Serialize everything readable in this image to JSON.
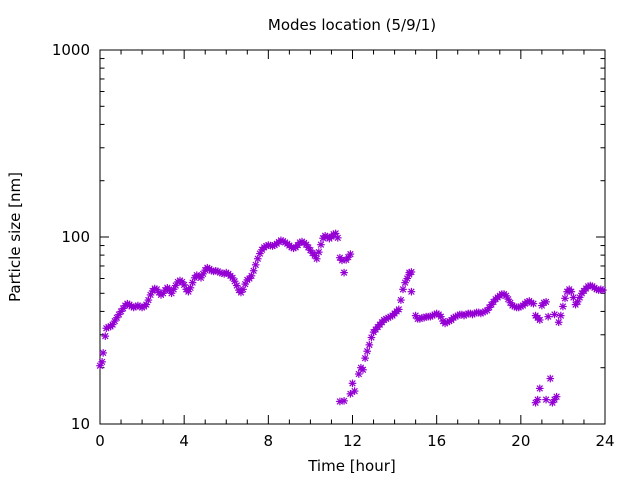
{
  "chart_data": {
    "type": "scatter",
    "title": "Modes location (5/9/1)",
    "xlabel": "Time [hour]",
    "ylabel": "Particle size [nm]",
    "xlim": [
      0,
      24
    ],
    "ylim": [
      10,
      1000
    ],
    "yscale": "log",
    "xticks": [
      0,
      4,
      8,
      12,
      16,
      20,
      24
    ],
    "yticks": [
      10,
      100,
      1000
    ],
    "grid": false,
    "legend": "none",
    "marker": "asterisk",
    "color": "#9400d3",
    "series": [
      {
        "points": [
          [
            0.0,
            20.5
          ],
          [
            0.1,
            21.5
          ],
          [
            0.15,
            24.0
          ],
          [
            0.25,
            29.5
          ],
          [
            0.3,
            32.5
          ],
          [
            0.4,
            33.0
          ],
          [
            0.5,
            33.2
          ],
          [
            0.6,
            34.0
          ],
          [
            0.7,
            35.5
          ],
          [
            0.8,
            37.0
          ],
          [
            0.9,
            38.5
          ],
          [
            1.0,
            40.0
          ],
          [
            1.1,
            41.5
          ],
          [
            1.2,
            43.0
          ],
          [
            1.3,
            44.0
          ],
          [
            1.4,
            43.5
          ],
          [
            1.5,
            42.5
          ],
          [
            1.6,
            42.0
          ],
          [
            1.7,
            42.5
          ],
          [
            1.8,
            43.0
          ],
          [
            1.9,
            42.5
          ],
          [
            2.0,
            42.0
          ],
          [
            2.1,
            42.5
          ],
          [
            2.2,
            43.5
          ],
          [
            2.3,
            46.0
          ],
          [
            2.4,
            49.0
          ],
          [
            2.5,
            51.5
          ],
          [
            2.6,
            53.0
          ],
          [
            2.7,
            52.5
          ],
          [
            2.8,
            50.5
          ],
          [
            2.9,
            49.0
          ],
          [
            3.0,
            50.0
          ],
          [
            3.1,
            52.0
          ],
          [
            3.2,
            53.5
          ],
          [
            3.3,
            52.0
          ],
          [
            3.4,
            50.0
          ],
          [
            3.5,
            52.5
          ],
          [
            3.6,
            55.0
          ],
          [
            3.7,
            57.5
          ],
          [
            3.8,
            58.5
          ],
          [
            3.9,
            57.5
          ],
          [
            4.0,
            55.5
          ],
          [
            4.1,
            52.5
          ],
          [
            4.2,
            51.0
          ],
          [
            4.3,
            53.5
          ],
          [
            4.4,
            57.0
          ],
          [
            4.5,
            60.5
          ],
          [
            4.6,
            62.5
          ],
          [
            4.7,
            61.5
          ],
          [
            4.8,
            60.5
          ],
          [
            4.9,
            63.5
          ],
          [
            5.0,
            66.5
          ],
          [
            5.1,
            68.5
          ],
          [
            5.2,
            67.5
          ],
          [
            5.3,
            66.0
          ],
          [
            5.4,
            65.5
          ],
          [
            5.5,
            66.0
          ],
          [
            5.6,
            65.5
          ],
          [
            5.7,
            64.5
          ],
          [
            5.8,
            64.0
          ],
          [
            5.9,
            63.5
          ],
          [
            6.0,
            64.5
          ],
          [
            6.1,
            63.5
          ],
          [
            6.2,
            62.0
          ],
          [
            6.3,
            60.5
          ],
          [
            6.4,
            58.0
          ],
          [
            6.5,
            55.0
          ],
          [
            6.6,
            52.0
          ],
          [
            6.7,
            50.5
          ],
          [
            6.8,
            52.5
          ],
          [
            6.9,
            56.0
          ],
          [
            7.0,
            59.0
          ],
          [
            7.1,
            60.0
          ],
          [
            7.2,
            62.0
          ],
          [
            7.3,
            66.0
          ],
          [
            7.4,
            71.0
          ],
          [
            7.5,
            76.5
          ],
          [
            7.6,
            81.5
          ],
          [
            7.7,
            85.5
          ],
          [
            7.8,
            88.0
          ],
          [
            7.9,
            89.5
          ],
          [
            8.0,
            90.5
          ],
          [
            8.1,
            90.0
          ],
          [
            8.2,
            89.5
          ],
          [
            8.3,
            90.5
          ],
          [
            8.4,
            92.0
          ],
          [
            8.5,
            94.0
          ],
          [
            8.6,
            96.0
          ],
          [
            8.7,
            95.0
          ],
          [
            8.8,
            93.5
          ],
          [
            8.9,
            92.0
          ],
          [
            9.0,
            90.0
          ],
          [
            9.1,
            88.0
          ],
          [
            9.2,
            87.0
          ],
          [
            9.3,
            88.0
          ],
          [
            9.4,
            90.5
          ],
          [
            9.5,
            93.5
          ],
          [
            9.6,
            94.5
          ],
          [
            9.7,
            93.0
          ],
          [
            9.8,
            91.0
          ],
          [
            9.9,
            88.0
          ],
          [
            10.0,
            85.0
          ],
          [
            10.1,
            82.0
          ],
          [
            10.2,
            79.5
          ],
          [
            10.3,
            76.5
          ],
          [
            10.4,
            83.0
          ],
          [
            10.5,
            91.0
          ],
          [
            10.6,
            98.5
          ],
          [
            10.7,
            101.5
          ],
          [
            10.8,
            100.0
          ],
          [
            10.9,
            98.0
          ],
          [
            11.0,
            100.5
          ],
          [
            11.1,
            103.5
          ],
          [
            11.2,
            104.5
          ],
          [
            11.3,
            99.0
          ],
          [
            11.4,
            77.5
          ],
          [
            11.5,
            75.0
          ],
          [
            11.6,
            64.5
          ],
          [
            11.7,
            75.5
          ],
          [
            11.8,
            78.0
          ],
          [
            11.9,
            81.0
          ],
          [
            11.4,
            13.2
          ],
          [
            11.6,
            13.3
          ],
          [
            11.9,
            14.5
          ],
          [
            12.0,
            16.5
          ],
          [
            12.1,
            15.0
          ],
          [
            12.3,
            18.5
          ],
          [
            12.4,
            20.0
          ],
          [
            12.5,
            19.5
          ],
          [
            12.6,
            22.5
          ],
          [
            12.7,
            24.5
          ],
          [
            12.8,
            26.5
          ],
          [
            12.9,
            29.0
          ],
          [
            13.0,
            31.0
          ],
          [
            13.1,
            32.0
          ],
          [
            13.2,
            33.0
          ],
          [
            13.3,
            34.0
          ],
          [
            13.4,
            35.0
          ],
          [
            13.5,
            36.0
          ],
          [
            13.6,
            36.5
          ],
          [
            13.7,
            37.0
          ],
          [
            13.8,
            37.5
          ],
          [
            13.9,
            38.0
          ],
          [
            14.0,
            39.0
          ],
          [
            14.1,
            40.0
          ],
          [
            14.2,
            41.0
          ],
          [
            14.3,
            46.0
          ],
          [
            14.4,
            52.5
          ],
          [
            14.5,
            57.0
          ],
          [
            14.6,
            60.0
          ],
          [
            14.7,
            63.0
          ],
          [
            14.8,
            65.0
          ],
          [
            14.7,
            64.5
          ],
          [
            14.8,
            51.0
          ],
          [
            15.0,
            38.0
          ],
          [
            15.1,
            36.5
          ],
          [
            15.2,
            36.5
          ],
          [
            15.3,
            37.0
          ],
          [
            15.4,
            37.0
          ],
          [
            15.5,
            37.5
          ],
          [
            15.6,
            37.5
          ],
          [
            15.7,
            37.5
          ],
          [
            15.8,
            38.0
          ],
          [
            15.9,
            38.5
          ],
          [
            16.0,
            39.0
          ],
          [
            16.1,
            38.5
          ],
          [
            16.2,
            37.5
          ],
          [
            16.3,
            35.5
          ],
          [
            16.4,
            34.5
          ],
          [
            16.5,
            35.0
          ],
          [
            16.6,
            35.5
          ],
          [
            16.7,
            36.0
          ],
          [
            16.8,
            37.0
          ],
          [
            16.9,
            37.5
          ],
          [
            17.0,
            38.0
          ],
          [
            17.1,
            38.5
          ],
          [
            17.2,
            38.5
          ],
          [
            17.3,
            38.0
          ],
          [
            17.4,
            38.5
          ],
          [
            17.5,
            39.0
          ],
          [
            17.6,
            39.0
          ],
          [
            17.7,
            38.5
          ],
          [
            17.8,
            39.0
          ],
          [
            17.9,
            39.5
          ],
          [
            18.0,
            39.5
          ],
          [
            18.1,
            39.0
          ],
          [
            18.2,
            39.5
          ],
          [
            18.3,
            40.0
          ],
          [
            18.4,
            40.5
          ],
          [
            18.5,
            42.0
          ],
          [
            18.6,
            43.5
          ],
          [
            18.7,
            45.0
          ],
          [
            18.8,
            46.5
          ],
          [
            18.9,
            47.5
          ],
          [
            19.0,
            48.5
          ],
          [
            19.1,
            49.5
          ],
          [
            19.2,
            49.5
          ],
          [
            19.3,
            48.5
          ],
          [
            19.4,
            46.5
          ],
          [
            19.5,
            44.5
          ],
          [
            19.6,
            43.0
          ],
          [
            19.7,
            42.5
          ],
          [
            19.8,
            42.0
          ],
          [
            19.9,
            42.0
          ],
          [
            20.0,
            42.5
          ],
          [
            20.1,
            43.0
          ],
          [
            20.2,
            44.0
          ],
          [
            20.3,
            45.0
          ],
          [
            20.4,
            45.5
          ],
          [
            20.5,
            44.5
          ],
          [
            20.6,
            44.0
          ],
          [
            20.7,
            38.0
          ],
          [
            20.8,
            37.0
          ],
          [
            20.9,
            36.0
          ],
          [
            21.0,
            43.0
          ],
          [
            21.1,
            44.5
          ],
          [
            21.2,
            45.0
          ],
          [
            21.3,
            37.5
          ],
          [
            21.6,
            38.5
          ],
          [
            21.8,
            35.0
          ],
          [
            21.9,
            38.0
          ],
          [
            22.0,
            42.5
          ],
          [
            22.1,
            47.0
          ],
          [
            22.2,
            51.0
          ],
          [
            22.3,
            52.5
          ],
          [
            22.4,
            51.0
          ],
          [
            22.5,
            47.5
          ],
          [
            22.6,
            43.5
          ],
          [
            22.7,
            45.0
          ],
          [
            22.8,
            47.5
          ],
          [
            22.9,
            50.0
          ],
          [
            23.0,
            51.5
          ],
          [
            23.1,
            53.0
          ],
          [
            23.2,
            54.5
          ],
          [
            23.3,
            55.0
          ],
          [
            23.4,
            54.5
          ],
          [
            23.5,
            53.5
          ],
          [
            23.6,
            52.5
          ],
          [
            23.7,
            52.0
          ],
          [
            23.8,
            52.5
          ],
          [
            23.9,
            52.0
          ],
          [
            20.7,
            13.0
          ],
          [
            20.8,
            13.5
          ],
          [
            20.9,
            15.5
          ],
          [
            21.2,
            13.5
          ],
          [
            21.4,
            17.5
          ],
          [
            21.5,
            13.0
          ],
          [
            21.6,
            13.5
          ],
          [
            21.7,
            14.0
          ]
        ]
      }
    ]
  }
}
